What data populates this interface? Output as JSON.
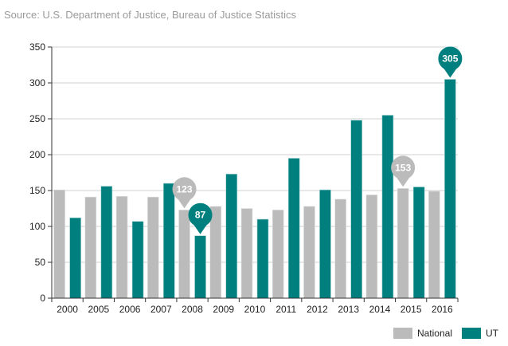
{
  "source": "Source: U.S. Department of Justice, Bureau of Justice Statistics",
  "chart_data": {
    "type": "bar",
    "categories": [
      "2000",
      "2005",
      "2006",
      "2007",
      "2008",
      "2009",
      "2010",
      "2011",
      "2012",
      "2013",
      "2014",
      "2015",
      "2016"
    ],
    "series": [
      {
        "name": "National",
        "color": "#bbbbbb",
        "values": [
          151,
          141,
          142,
          141,
          123,
          128,
          125,
          123,
          128,
          138,
          144,
          153,
          149
        ]
      },
      {
        "name": "UT",
        "color": "#007f7f",
        "values": [
          112,
          156,
          107,
          160,
          87,
          173,
          110,
          195,
          151,
          248,
          255,
          155,
          305
        ]
      }
    ],
    "ylim": [
      0,
      350
    ],
    "yticks": [
      0,
      50,
      100,
      150,
      200,
      250,
      300,
      350
    ],
    "grid": true,
    "legend": "bottom-right",
    "callouts": [
      {
        "series": 0,
        "category": "2008",
        "label": "123"
      },
      {
        "series": 1,
        "category": "2008",
        "label": "87"
      },
      {
        "series": 0,
        "category": "2015",
        "label": "153"
      },
      {
        "series": 1,
        "category": "2016",
        "label": "305"
      }
    ]
  }
}
